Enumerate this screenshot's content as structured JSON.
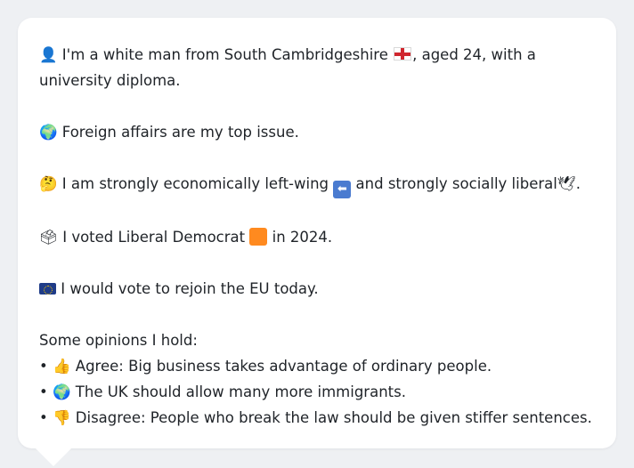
{
  "profile": {
    "line1_prefix": "I'm a white man from South Cambridgeshire",
    "line1_suffix": ", aged 24, with a university diploma.",
    "line2": "Foreign affairs are my top issue.",
    "line3_a": "I am strongly economically left-wing",
    "line3_b": "and strongly socially liberal",
    "line3_c": ".",
    "line4_a": "I voted Liberal Democrat",
    "line4_b": "in 2024.",
    "line5": "I would vote to rejoin the EU today."
  },
  "opinions": {
    "heading": "Some opinions I hold:",
    "items": [
      {
        "bullet": "•",
        "text": "Agree: Big business takes advantage of ordinary people.",
        "icon": "thumbs-up-icon"
      },
      {
        "bullet": "•",
        "text": "The UK should allow many more immigrants.",
        "icon": "globe-icon"
      },
      {
        "bullet": "•",
        "text": "Disagree: People who break the law should be given stiffer sentences.",
        "icon": "thumbs-down-icon"
      }
    ]
  },
  "icons": {
    "person": "👤",
    "globe": "🌍",
    "thinking": "🤔",
    "left_arrow": "⬅",
    "dove": "🕊",
    "ballot": "🗳",
    "thumbs_up": "👍",
    "thumbs_down": "👎"
  },
  "colors": {
    "background": "#eef0f3",
    "bubble": "#ffffff",
    "text": "#1f2328",
    "libdem_orange": "#ff8a1f"
  }
}
